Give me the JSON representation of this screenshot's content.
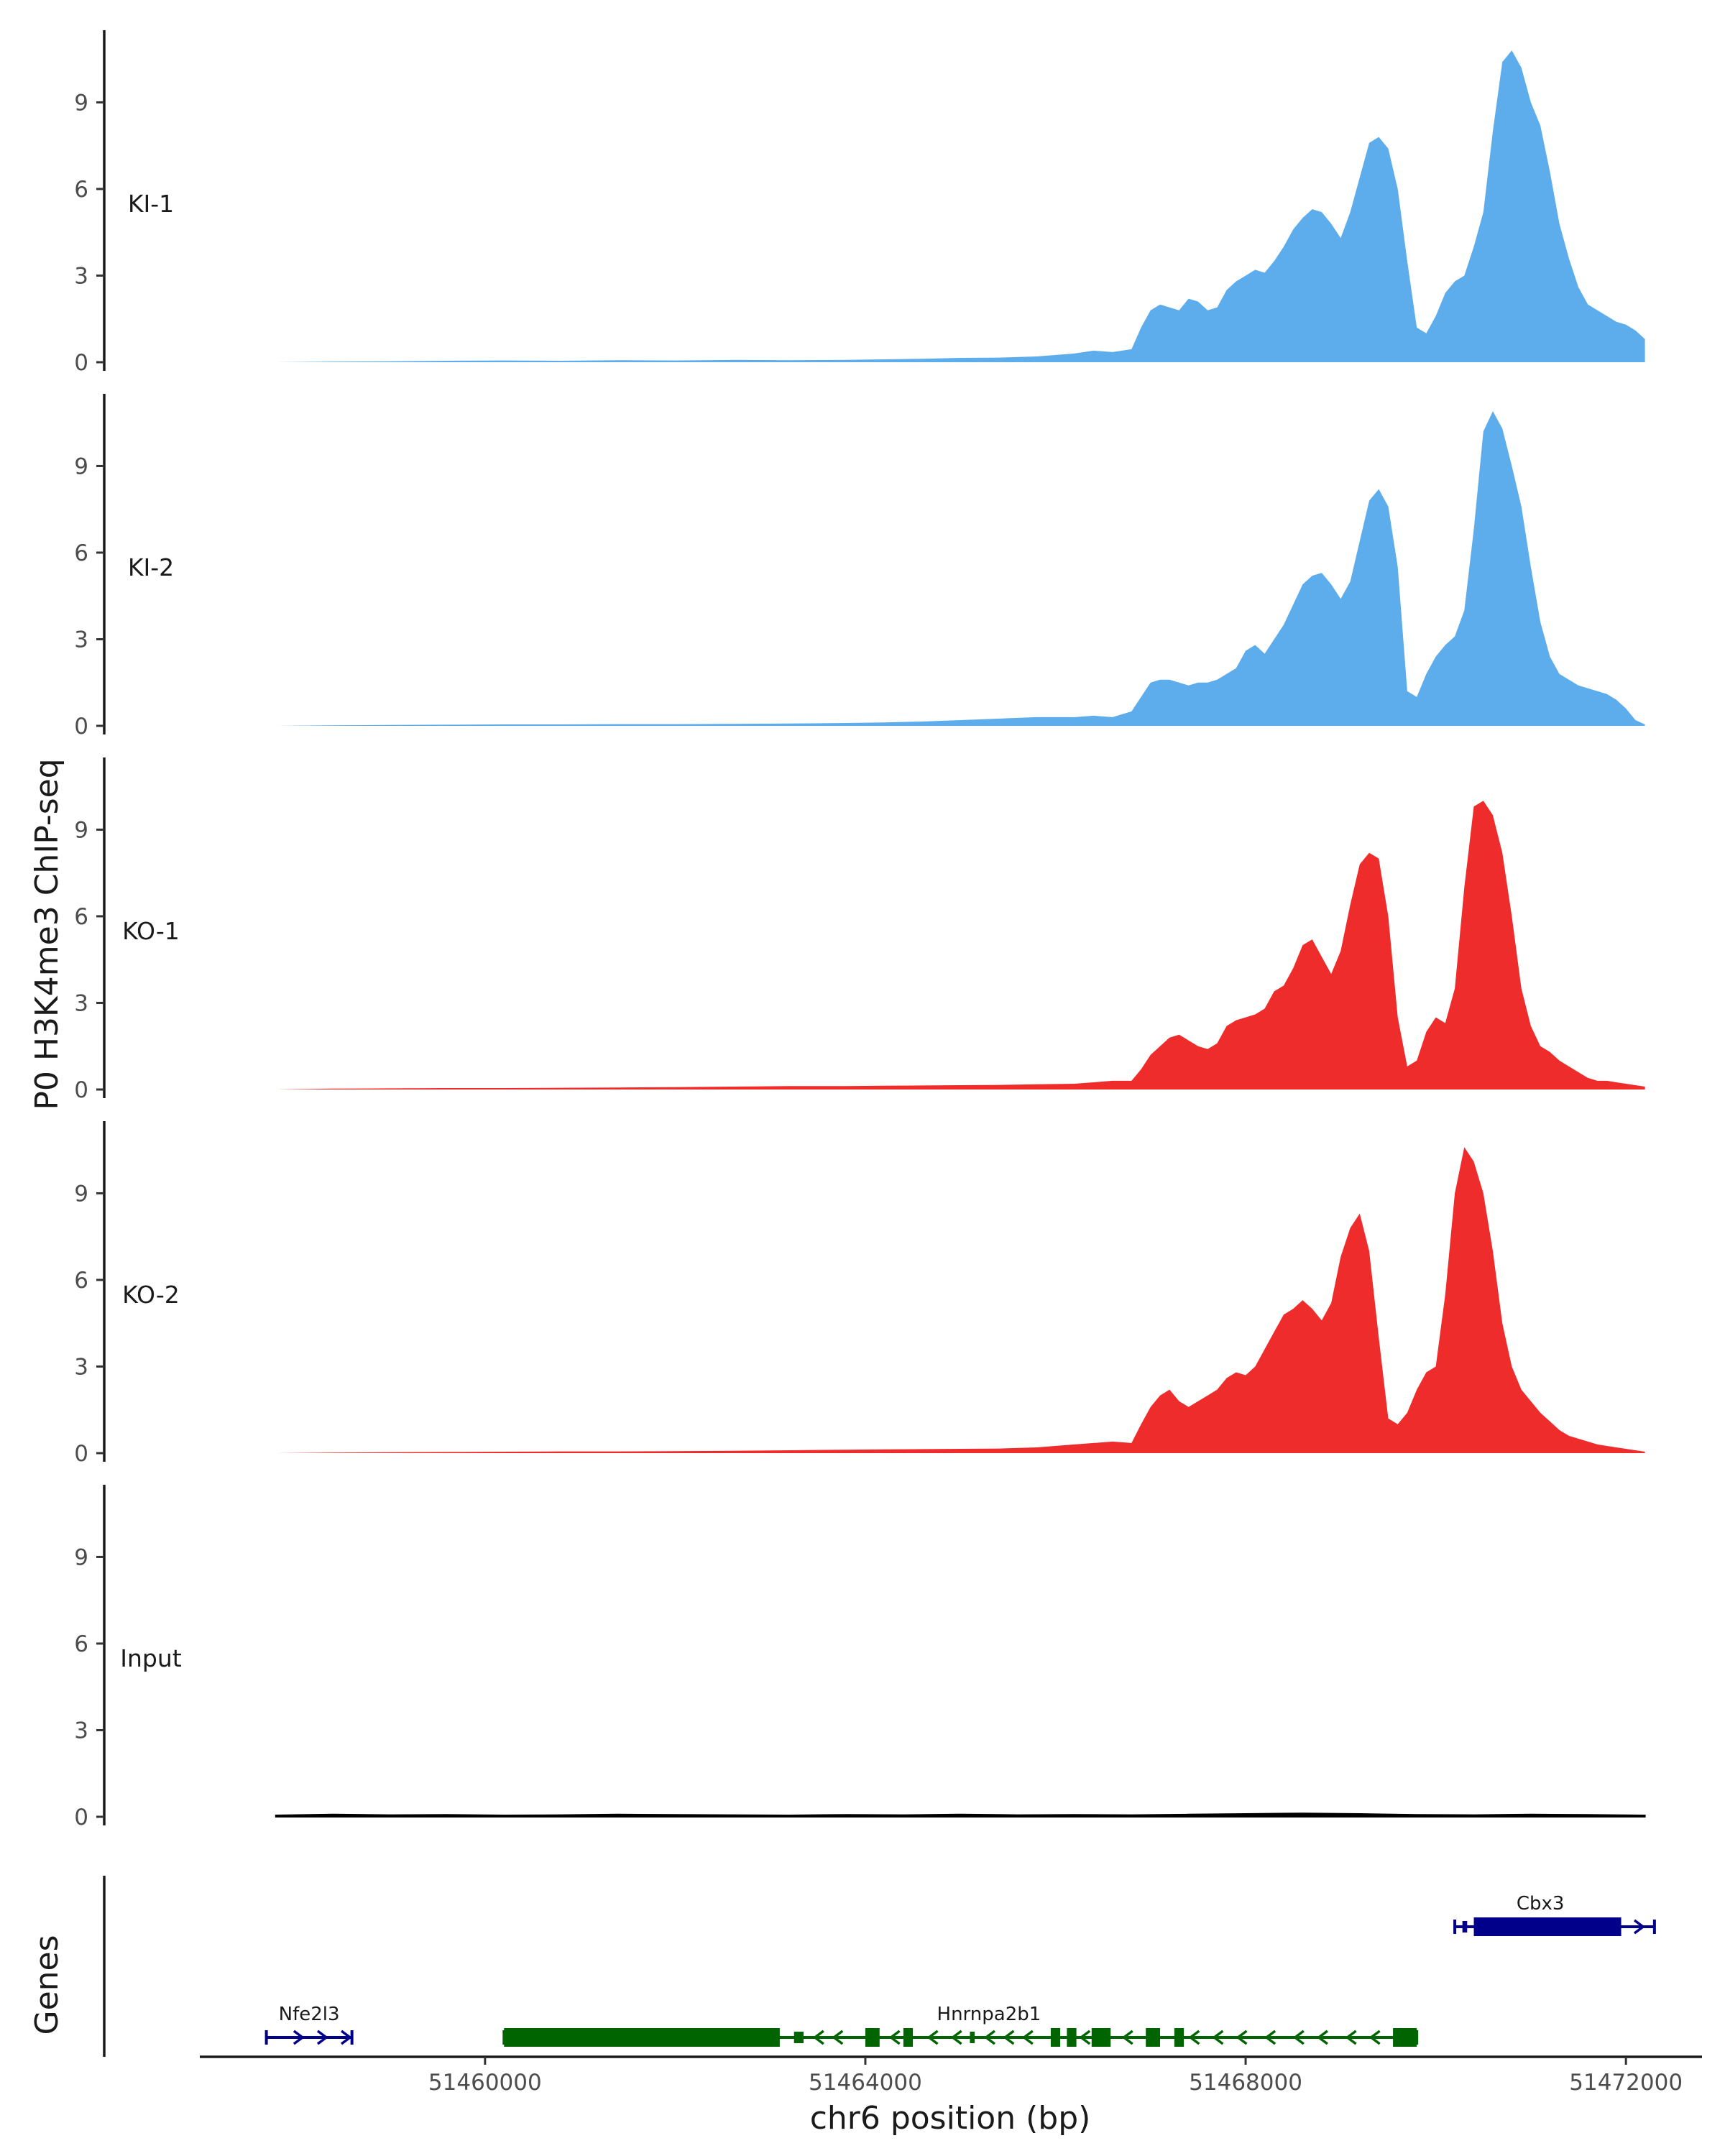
{
  "chart_data": {
    "type": "area",
    "ylabel": "P0 H3K4me3 ChIP-seq",
    "xlabel": "chr6 position (bp)",
    "genes_label": "Genes",
    "xlim": [
      51457000,
      51472800
    ],
    "ylim": [
      0,
      11.5
    ],
    "y_ticks": [
      0,
      3,
      6,
      9
    ],
    "x_ticks": [
      51460000,
      51464000,
      51468000,
      51472000
    ],
    "x_tick_labels": [
      "51460000",
      "51464000",
      "51468000",
      "51472000"
    ],
    "tracks": [
      {
        "name": "KI-1",
        "color": "#5DADEC",
        "x": [
          51457800,
          51458400,
          51459000,
          51459600,
          51460200,
          51460800,
          51461400,
          51462000,
          51462600,
          51463200,
          51463800,
          51464200,
          51464600,
          51465000,
          51465400,
          51465800,
          51466200,
          51466400,
          51466600,
          51466800,
          51466900,
          51467000,
          51467100,
          51467200,
          51467300,
          51467400,
          51467500,
          51467600,
          51467700,
          51467800,
          51467900,
          51468000,
          51468100,
          51468200,
          51468300,
          51468400,
          51468500,
          51468600,
          51468700,
          51468800,
          51468900,
          51469000,
          51469100,
          51469200,
          51469300,
          51469400,
          51469500,
          51469600,
          51469700,
          51469800,
          51469900,
          51470000,
          51470100,
          51470200,
          51470300,
          51470400,
          51470500,
          51470600,
          51470700,
          51470800,
          51470900,
          51471000,
          51471100,
          51471200,
          51471300,
          51471400,
          51471500,
          51471600,
          51471700,
          51471800,
          51471900,
          51472000,
          51472100,
          51472200
        ],
        "y": [
          0,
          0.02,
          0.03,
          0.05,
          0.06,
          0.05,
          0.07,
          0.06,
          0.08,
          0.07,
          0.08,
          0.1,
          0.12,
          0.15,
          0.16,
          0.2,
          0.3,
          0.4,
          0.35,
          0.45,
          1.2,
          1.8,
          2.0,
          1.9,
          1.8,
          2.2,
          2.1,
          1.8,
          1.9,
          2.5,
          2.8,
          3.0,
          3.2,
          3.1,
          3.5,
          4.0,
          4.6,
          5.0,
          5.3,
          5.2,
          4.8,
          4.3,
          5.2,
          6.4,
          7.6,
          7.8,
          7.4,
          6.0,
          3.5,
          1.2,
          1.0,
          1.6,
          2.4,
          2.8,
          3.0,
          4.0,
          5.2,
          8.0,
          10.4,
          10.8,
          10.2,
          9.0,
          8.2,
          6.6,
          4.8,
          3.6,
          2.6,
          2.0,
          1.8,
          1.6,
          1.4,
          1.3,
          1.1,
          0.8
        ]
      },
      {
        "name": "KI-2",
        "color": "#5DADEC",
        "x": [
          51457800,
          51458400,
          51459000,
          51459600,
          51460200,
          51460800,
          51461400,
          51462000,
          51462600,
          51463200,
          51463800,
          51464200,
          51464600,
          51465000,
          51465400,
          51465800,
          51466200,
          51466400,
          51466600,
          51466800,
          51466900,
          51467000,
          51467100,
          51467200,
          51467300,
          51467400,
          51467500,
          51467600,
          51467700,
          51467800,
          51467900,
          51468000,
          51468100,
          51468200,
          51468300,
          51468400,
          51468500,
          51468600,
          51468700,
          51468800,
          51468900,
          51469000,
          51469100,
          51469200,
          51469300,
          51469400,
          51469500,
          51469600,
          51469700,
          51469800,
          51469900,
          51470000,
          51470100,
          51470200,
          51470300,
          51470400,
          51470500,
          51470600,
          51470700,
          51470800,
          51470900,
          51471000,
          51471100,
          51471200,
          51471300,
          51471400,
          51471500,
          51471600,
          51471700,
          51471800,
          51471900,
          51472000,
          51472100,
          51472200
        ],
        "y": [
          0,
          0.02,
          0.03,
          0.04,
          0.05,
          0.05,
          0.06,
          0.06,
          0.07,
          0.08,
          0.1,
          0.12,
          0.15,
          0.2,
          0.25,
          0.3,
          0.3,
          0.35,
          0.3,
          0.5,
          1.0,
          1.5,
          1.6,
          1.6,
          1.5,
          1.4,
          1.5,
          1.5,
          1.6,
          1.8,
          2.0,
          2.6,
          2.8,
          2.5,
          3.0,
          3.5,
          4.2,
          4.9,
          5.2,
          5.3,
          4.9,
          4.4,
          5.0,
          6.4,
          7.8,
          8.2,
          7.6,
          5.5,
          1.2,
          1.0,
          1.8,
          2.4,
          2.8,
          3.1,
          4.0,
          6.8,
          10.2,
          10.9,
          10.3,
          9.0,
          7.6,
          5.5,
          3.6,
          2.4,
          1.8,
          1.6,
          1.4,
          1.3,
          1.2,
          1.1,
          0.9,
          0.6,
          0.2,
          0.05
        ]
      },
      {
        "name": "KO-1",
        "color": "#EE2C2C",
        "x": [
          51457800,
          51458400,
          51459000,
          51459600,
          51460200,
          51460800,
          51461400,
          51462000,
          51462600,
          51463200,
          51463800,
          51464200,
          51464600,
          51465000,
          51465400,
          51465800,
          51466200,
          51466400,
          51466600,
          51466800,
          51466900,
          51467000,
          51467100,
          51467200,
          51467300,
          51467400,
          51467500,
          51467600,
          51467700,
          51467800,
          51467900,
          51468000,
          51468100,
          51468200,
          51468300,
          51468400,
          51468500,
          51468600,
          51468700,
          51468800,
          51468900,
          51469000,
          51469100,
          51469200,
          51469300,
          51469400,
          51469500,
          51469600,
          51469700,
          51469800,
          51469900,
          51470000,
          51470100,
          51470200,
          51470300,
          51470400,
          51470500,
          51470600,
          51470700,
          51470800,
          51470900,
          51471000,
          51471100,
          51471200,
          51471300,
          51471400,
          51471500,
          51471600,
          51471700,
          51471800,
          51471900,
          51472000,
          51472100,
          51472200
        ],
        "y": [
          0,
          0.03,
          0.04,
          0.05,
          0.05,
          0.06,
          0.07,
          0.08,
          0.1,
          0.12,
          0.12,
          0.13,
          0.14,
          0.15,
          0.16,
          0.18,
          0.2,
          0.25,
          0.3,
          0.3,
          0.7,
          1.2,
          1.5,
          1.8,
          1.9,
          1.7,
          1.5,
          1.4,
          1.6,
          2.2,
          2.4,
          2.5,
          2.6,
          2.8,
          3.4,
          3.6,
          4.2,
          5.0,
          5.2,
          4.6,
          4.0,
          4.8,
          6.4,
          7.8,
          8.2,
          8.0,
          6.0,
          2.5,
          0.8,
          1.0,
          2.0,
          2.5,
          2.3,
          3.5,
          7.0,
          9.8,
          10.0,
          9.5,
          8.2,
          6.0,
          3.5,
          2.2,
          1.5,
          1.3,
          1.0,
          0.8,
          0.6,
          0.4,
          0.3,
          0.3,
          0.25,
          0.2,
          0.15,
          0.1
        ]
      },
      {
        "name": "KO-2",
        "color": "#EE2C2C",
        "x": [
          51457800,
          51458400,
          51459000,
          51459600,
          51460200,
          51460800,
          51461400,
          51462000,
          51462600,
          51463200,
          51463800,
          51464200,
          51464600,
          51465000,
          51465400,
          51465800,
          51466200,
          51466400,
          51466600,
          51466800,
          51466900,
          51467000,
          51467100,
          51467200,
          51467300,
          51467400,
          51467500,
          51467600,
          51467700,
          51467800,
          51467900,
          51468000,
          51468100,
          51468200,
          51468300,
          51468400,
          51468500,
          51468600,
          51468700,
          51468800,
          51468900,
          51469000,
          51469100,
          51469200,
          51469300,
          51469400,
          51469500,
          51469600,
          51469700,
          51469800,
          51469900,
          51470000,
          51470100,
          51470200,
          51470300,
          51470400,
          51470500,
          51470600,
          51470700,
          51470800,
          51470900,
          51471000,
          51471100,
          51471200,
          51471300,
          51471400,
          51471500,
          51471600,
          51471700,
          51471800,
          51471900,
          51472000,
          51472100,
          51472200
        ],
        "y": [
          0,
          0.02,
          0.03,
          0.04,
          0.05,
          0.06,
          0.06,
          0.07,
          0.08,
          0.1,
          0.12,
          0.13,
          0.14,
          0.15,
          0.16,
          0.2,
          0.3,
          0.35,
          0.4,
          0.35,
          1.0,
          1.6,
          2.0,
          2.2,
          1.8,
          1.6,
          1.8,
          2.0,
          2.2,
          2.6,
          2.8,
          2.7,
          3.0,
          3.6,
          4.2,
          4.8,
          5.0,
          5.3,
          5.0,
          4.6,
          5.2,
          6.8,
          7.8,
          8.3,
          7.0,
          4.0,
          1.2,
          1.0,
          1.4,
          2.2,
          2.8,
          3.0,
          5.5,
          9.0,
          10.6,
          10.1,
          9.0,
          7.0,
          4.5,
          3.0,
          2.2,
          1.8,
          1.4,
          1.1,
          0.8,
          0.6,
          0.5,
          0.4,
          0.3,
          0.25,
          0.2,
          0.15,
          0.1,
          0.05
        ]
      },
      {
        "name": "Input",
        "color": "#000000",
        "x": [
          51457800,
          51458400,
          51459000,
          51459600,
          51460200,
          51460800,
          51461400,
          51462000,
          51462600,
          51463200,
          51463800,
          51464400,
          51465000,
          51465600,
          51466200,
          51466800,
          51467400,
          51468000,
          51468600,
          51469200,
          51469800,
          51470400,
          51471000,
          51471600,
          51472200
        ],
        "y": [
          0.05,
          0.08,
          0.06,
          0.07,
          0.05,
          0.06,
          0.08,
          0.07,
          0.06,
          0.05,
          0.07,
          0.06,
          0.08,
          0.06,
          0.07,
          0.06,
          0.08,
          0.1,
          0.12,
          0.1,
          0.07,
          0.06,
          0.08,
          0.07,
          0.05
        ]
      }
    ],
    "genes": [
      {
        "name": "Nfe2l3",
        "row": "bottom",
        "strand": "+",
        "color": "#00008B",
        "start": 51457700,
        "end": 51458600,
        "exons": [],
        "arrows": [
          51458050,
          51458300,
          51458550
        ]
      },
      {
        "name": "Hnrnpa2b1",
        "row": "bottom",
        "strand": "-",
        "color": "#006400",
        "start": 51460200,
        "end": 51469800,
        "exons": [
          [
            51460200,
            51463100,
            "cds"
          ],
          [
            51463250,
            51463350,
            "utr"
          ],
          [
            51464000,
            51464150,
            "cds"
          ],
          [
            51464400,
            51464500,
            "cds"
          ],
          [
            51465100,
            51465150,
            "utr"
          ],
          [
            51465950,
            51466050,
            "cds"
          ],
          [
            51466120,
            51466220,
            "cds"
          ],
          [
            51466380,
            51466580,
            "cds"
          ],
          [
            51466950,
            51467100,
            "cds"
          ],
          [
            51467250,
            51467350,
            "cds"
          ],
          [
            51469550,
            51469800,
            "cds"
          ]
        ],
        "arrows": [
          51463500,
          51463700,
          51464300,
          51464700,
          51464950,
          51465300,
          51465500,
          51465700,
          51466300,
          51466750,
          51467450,
          51467700,
          51467950,
          51468250,
          51468550,
          51468800,
          51469100,
          51469350
        ]
      },
      {
        "name": "Cbx3",
        "row": "top",
        "strand": "+",
        "color": "#00008B",
        "start": 51470200,
        "end": 51472300,
        "exons": [
          [
            51470280,
            51470330,
            "utr"
          ],
          [
            51470400,
            51471950,
            "cds"
          ]
        ],
        "arrows": [
          51472150
        ]
      }
    ]
  }
}
